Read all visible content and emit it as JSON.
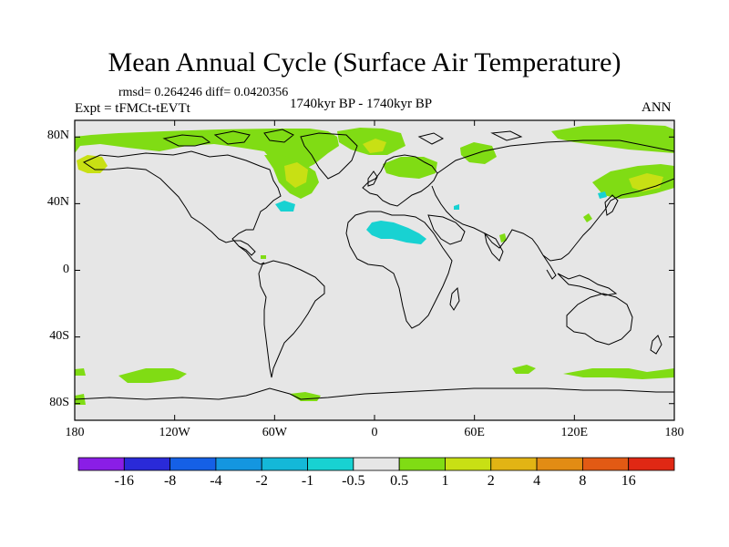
{
  "title": "Mean Annual Cycle (Surface Air Temperature)",
  "stats": "rmsd= 0.264246  diff= 0.0420356",
  "experiment": "Expt = tFMCt-tEVTt",
  "period": "1740kyr BP - 1740kyr BP",
  "season": "ANN",
  "lat_ticks": [
    {
      "label": "80N",
      "lat": 80
    },
    {
      "label": "40N",
      "lat": 40
    },
    {
      "label": "0",
      "lat": 0
    },
    {
      "label": "40S",
      "lat": -40
    },
    {
      "label": "80S",
      "lat": -80
    }
  ],
  "lon_ticks": [
    {
      "label": "180",
      "lon": -180
    },
    {
      "label": "120W",
      "lon": -120
    },
    {
      "label": "60W",
      "lon": -60
    },
    {
      "label": "0",
      "lon": 0
    },
    {
      "label": "60E",
      "lon": 60
    },
    {
      "label": "120E",
      "lon": 120
    },
    {
      "label": "180",
      "lon": 180
    }
  ],
  "colorbar": {
    "colors": [
      "#8a1ee6",
      "#2a2ad8",
      "#1560e6",
      "#1496e0",
      "#14b8d8",
      "#18d2d2",
      "#e6e6e6",
      "#80dc14",
      "#c8e014",
      "#e2b414",
      "#e28c14",
      "#e25a14",
      "#e02814"
    ],
    "labels": [
      "-16",
      "-8",
      "-4",
      "-2",
      "-1",
      "-0.5",
      "0.5",
      "1",
      "2",
      "4",
      "8",
      "16"
    ]
  },
  "map_colors": {
    "background": "#e6e6e6",
    "green": "#80dc14",
    "yellow": "#c8e014",
    "orange": "#e2b414",
    "cyan": "#18d2d2"
  }
}
